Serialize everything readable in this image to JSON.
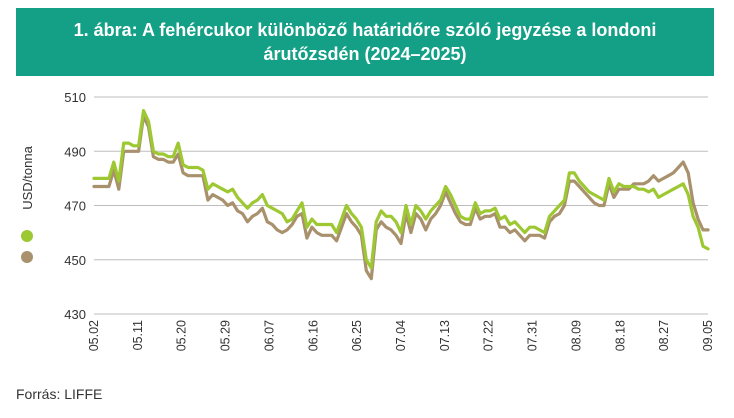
{
  "header": {
    "title_line1": "1. ábra: A fehércukor különböző határidőre szóló jegyzése a londoni",
    "title_line2": "árutőzsdén (2024–2025)"
  },
  "source": "Forrás: LIFFE",
  "colors": {
    "header_bg": "#14a086",
    "series_2025": "#9dc832",
    "series_2024": "#a8916c"
  },
  "chart_data": {
    "type": "line",
    "ylabel": "USD/tonna",
    "ylim": [
      430,
      510
    ],
    "yticks": [
      "510",
      "490",
      "470",
      "450",
      "430"
    ],
    "xticks": [
      "05.02",
      "05.11",
      "05.20",
      "05.29",
      "06.07",
      "06.16",
      "06.25",
      "07.04",
      "07.13",
      "07.22",
      "07.31",
      "08.09",
      "08.18",
      "08.27",
      "09.05"
    ],
    "grid": "horizontal",
    "legend": "left, markers only",
    "series": [
      {
        "color": "#9dc832",
        "x": [
          0,
          1,
          2,
          3,
          4,
          5,
          6,
          7,
          8,
          9,
          10,
          11,
          12,
          13,
          14,
          15,
          16,
          17,
          18,
          19,
          20,
          21,
          22,
          23,
          24,
          25,
          26,
          27,
          28,
          29,
          30,
          31,
          32,
          33,
          34,
          35,
          36,
          37,
          38,
          39,
          40,
          41,
          42,
          43,
          44,
          45,
          46,
          47,
          48,
          49,
          50,
          51,
          52,
          53,
          54,
          55,
          56,
          57,
          58,
          59,
          60,
          61,
          62,
          63,
          64,
          65,
          66,
          67,
          68,
          69,
          70,
          71,
          72,
          73,
          74,
          75,
          76,
          77,
          78,
          79,
          80,
          81,
          82,
          83,
          84,
          85,
          86,
          87,
          88,
          89,
          90,
          91,
          92,
          93,
          94,
          95,
          96,
          97,
          98,
          99,
          100,
          101,
          102,
          103,
          104,
          105,
          106,
          107,
          108,
          109,
          110,
          111,
          112,
          113,
          114,
          115,
          116,
          117,
          118,
          119,
          120,
          121,
          122,
          123,
          124
        ],
        "values": [
          480,
          480,
          480,
          480,
          486,
          479,
          493,
          493,
          492,
          492,
          505,
          501,
          490,
          489,
          489,
          488,
          488,
          493,
          485,
          484,
          484,
          484,
          483,
          476,
          478,
          477,
          476,
          475,
          476,
          473,
          471,
          469,
          471,
          472,
          474,
          470,
          469,
          468,
          467,
          464,
          465,
          468,
          471,
          462,
          465,
          463,
          463,
          463,
          463,
          460,
          465,
          470,
          467,
          465,
          462,
          450,
          447,
          464,
          468,
          466,
          466,
          464,
          460,
          470,
          463,
          470,
          468,
          465,
          468,
          470,
          472,
          477,
          474,
          470,
          466,
          465,
          465,
          471,
          467,
          468,
          468,
          469,
          465,
          466,
          463,
          464,
          462,
          460,
          462,
          462,
          461,
          460,
          466,
          468,
          470,
          472,
          482,
          482,
          479,
          477,
          475,
          474,
          473,
          472,
          480,
          475,
          478,
          477,
          477,
          477,
          476,
          476,
          475,
          476,
          473,
          474,
          475,
          476,
          477,
          478,
          474,
          466,
          462,
          455,
          454
        ]
      },
      {
        "color": "#a8916c",
        "x": [
          0,
          1,
          2,
          3,
          4,
          5,
          6,
          7,
          8,
          9,
          10,
          11,
          12,
          13,
          14,
          15,
          16,
          17,
          18,
          19,
          20,
          21,
          22,
          23,
          24,
          25,
          26,
          27,
          28,
          29,
          30,
          31,
          32,
          33,
          34,
          35,
          36,
          37,
          38,
          39,
          40,
          41,
          42,
          43,
          44,
          45,
          46,
          47,
          48,
          49,
          50,
          51,
          52,
          53,
          54,
          55,
          56,
          57,
          58,
          59,
          60,
          61,
          62,
          63,
          64,
          65,
          66,
          67,
          68,
          69,
          70,
          71,
          72,
          73,
          74,
          75,
          76,
          77,
          78,
          79,
          80,
          81,
          82,
          83,
          84,
          85,
          86,
          87,
          88,
          89,
          90,
          91,
          92,
          93,
          94,
          95,
          96,
          97,
          98,
          99,
          100,
          101,
          102,
          103,
          104,
          105,
          106,
          107,
          108,
          109,
          110,
          111,
          112,
          113,
          114,
          115,
          116,
          117,
          118,
          119,
          120,
          121,
          122,
          123,
          124
        ],
        "values": [
          477,
          477,
          477,
          477,
          483,
          476,
          490,
          490,
          490,
          490,
          503,
          499,
          488,
          487,
          487,
          486,
          486,
          489,
          482,
          481,
          481,
          481,
          481,
          472,
          474,
          473,
          472,
          470,
          471,
          468,
          467,
          464,
          466,
          467,
          469,
          464,
          463,
          461,
          460,
          461,
          463,
          466,
          467,
          458,
          462,
          460,
          459,
          459,
          459,
          457,
          462,
          467,
          464,
          462,
          459,
          446,
          443,
          461,
          464,
          462,
          461,
          459,
          456,
          467,
          460,
          467,
          465,
          461,
          465,
          467,
          470,
          475,
          471,
          467,
          464,
          463,
          463,
          469,
          465,
          466,
          466,
          467,
          462,
          462,
          460,
          461,
          459,
          457,
          459,
          459,
          459,
          458,
          464,
          466,
          467,
          470,
          479,
          479,
          477,
          475,
          473,
          471,
          470,
          470,
          478,
          473,
          476,
          476,
          476,
          478,
          478,
          478,
          479,
          481,
          479,
          480,
          481,
          482,
          484,
          486,
          482,
          471,
          465,
          461,
          461
        ]
      }
    ]
  }
}
